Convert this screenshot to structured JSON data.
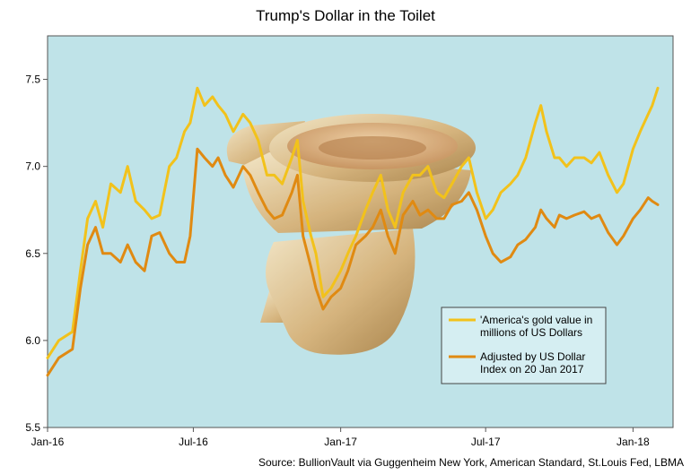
{
  "chart_data": {
    "type": "line",
    "title": "Trump's Dollar in the Toilet",
    "source": "Source: BullionVault via Guggenheim New York, American Standard, St.Louis Fed, LBMA",
    "xlabel": "",
    "ylabel": "",
    "ylim": [
      5.5,
      7.75
    ],
    "yticks": [
      "5.5",
      "6.0",
      "6.5",
      "7.0",
      "7.5"
    ],
    "xlim": [
      "2016-01-01",
      "2018-02-20"
    ],
    "xticks": [
      {
        "label": "Jan-16",
        "date": "2016-01-01"
      },
      {
        "label": "Jul-16",
        "date": "2016-07-01"
      },
      {
        "label": "Jan-17",
        "date": "2017-01-01"
      },
      {
        "label": "Jul-17",
        "date": "2017-07-01"
      },
      {
        "label": "Jan-18",
        "date": "2018-01-01"
      }
    ],
    "grid": false,
    "legend_position": "lower-right",
    "background_color": "#bfe3e8",
    "series": [
      {
        "name": "'America's gold value in millions of US Dollars",
        "color": "#f2c21b",
        "x": [
          "2016-01-01",
          "2016-01-15",
          "2016-02-01",
          "2016-02-11",
          "2016-02-20",
          "2016-03-01",
          "2016-03-10",
          "2016-03-20",
          "2016-04-01",
          "2016-04-10",
          "2016-04-20",
          "2016-05-01",
          "2016-05-10",
          "2016-05-20",
          "2016-06-01",
          "2016-06-10",
          "2016-06-20",
          "2016-06-27",
          "2016-07-06",
          "2016-07-15",
          "2016-07-25",
          "2016-08-01",
          "2016-08-10",
          "2016-08-20",
          "2016-09-01",
          "2016-09-10",
          "2016-09-20",
          "2016-10-01",
          "2016-10-10",
          "2016-10-20",
          "2016-11-01",
          "2016-11-08",
          "2016-11-15",
          "2016-11-25",
          "2016-12-01",
          "2016-12-10",
          "2016-12-20",
          "2017-01-01",
          "2017-01-10",
          "2017-01-20",
          "2017-02-01",
          "2017-02-10",
          "2017-02-20",
          "2017-03-01",
          "2017-03-10",
          "2017-03-20",
          "2017-04-01",
          "2017-04-10",
          "2017-04-20",
          "2017-05-01",
          "2017-05-10",
          "2017-05-20",
          "2017-06-01",
          "2017-06-10",
          "2017-06-20",
          "2017-07-01",
          "2017-07-10",
          "2017-07-20",
          "2017-08-01",
          "2017-08-10",
          "2017-08-20",
          "2017-09-01",
          "2017-09-08",
          "2017-09-15",
          "2017-09-25",
          "2017-10-01",
          "2017-10-10",
          "2017-10-20",
          "2017-11-01",
          "2017-11-10",
          "2017-11-20",
          "2017-12-01",
          "2017-12-12",
          "2017-12-20",
          "2018-01-01",
          "2018-01-10",
          "2018-01-20",
          "2018-01-25",
          "2018-02-01"
        ],
        "values": [
          5.9,
          6.0,
          6.05,
          6.4,
          6.7,
          6.8,
          6.65,
          6.9,
          6.85,
          7.0,
          6.8,
          6.75,
          6.7,
          6.72,
          7.0,
          7.05,
          7.2,
          7.25,
          7.45,
          7.35,
          7.4,
          7.35,
          7.3,
          7.2,
          7.3,
          7.25,
          7.15,
          6.95,
          6.95,
          6.9,
          7.05,
          7.15,
          6.8,
          6.6,
          6.5,
          6.25,
          6.3,
          6.4,
          6.5,
          6.6,
          6.75,
          6.85,
          6.95,
          6.75,
          6.65,
          6.85,
          6.95,
          6.95,
          7.0,
          6.85,
          6.82,
          6.9,
          7.0,
          7.05,
          6.85,
          6.7,
          6.75,
          6.85,
          6.9,
          6.95,
          7.05,
          7.25,
          7.35,
          7.2,
          7.05,
          7.05,
          7.0,
          7.05,
          7.05,
          7.02,
          7.08,
          6.95,
          6.85,
          6.9,
          7.1,
          7.2,
          7.3,
          7.35,
          7.45
        ]
      },
      {
        "name": "Adjusted by US Dollar Index on 20 Jan 2017",
        "color": "#e08a12",
        "x": [
          "2016-01-01",
          "2016-01-15",
          "2016-02-01",
          "2016-02-11",
          "2016-02-20",
          "2016-03-01",
          "2016-03-10",
          "2016-03-20",
          "2016-04-01",
          "2016-04-10",
          "2016-04-20",
          "2016-05-01",
          "2016-05-10",
          "2016-05-20",
          "2016-06-01",
          "2016-06-10",
          "2016-06-20",
          "2016-06-27",
          "2016-07-06",
          "2016-07-15",
          "2016-07-25",
          "2016-08-01",
          "2016-08-10",
          "2016-08-20",
          "2016-09-01",
          "2016-09-10",
          "2016-09-20",
          "2016-10-01",
          "2016-10-10",
          "2016-10-20",
          "2016-11-01",
          "2016-11-08",
          "2016-11-15",
          "2016-11-25",
          "2016-12-01",
          "2016-12-10",
          "2016-12-20",
          "2017-01-01",
          "2017-01-10",
          "2017-01-20",
          "2017-02-01",
          "2017-02-10",
          "2017-02-20",
          "2017-03-01",
          "2017-03-10",
          "2017-03-20",
          "2017-04-01",
          "2017-04-10",
          "2017-04-20",
          "2017-05-01",
          "2017-05-10",
          "2017-05-20",
          "2017-06-01",
          "2017-06-10",
          "2017-06-20",
          "2017-07-01",
          "2017-07-10",
          "2017-07-20",
          "2017-08-01",
          "2017-08-10",
          "2017-08-20",
          "2017-09-01",
          "2017-09-08",
          "2017-09-15",
          "2017-09-25",
          "2017-10-01",
          "2017-10-10",
          "2017-10-20",
          "2017-11-01",
          "2017-11-10",
          "2017-11-20",
          "2017-12-01",
          "2017-12-12",
          "2017-12-20",
          "2018-01-01",
          "2018-01-10",
          "2018-01-20",
          "2018-01-25",
          "2018-02-01"
        ],
        "values": [
          5.8,
          5.9,
          5.95,
          6.3,
          6.55,
          6.65,
          6.5,
          6.5,
          6.45,
          6.55,
          6.45,
          6.4,
          6.6,
          6.62,
          6.5,
          6.45,
          6.45,
          6.6,
          7.1,
          7.05,
          7.0,
          7.05,
          6.95,
          6.88,
          7.0,
          6.95,
          6.85,
          6.75,
          6.7,
          6.72,
          6.85,
          6.95,
          6.6,
          6.42,
          6.3,
          6.18,
          6.25,
          6.3,
          6.4,
          6.55,
          6.6,
          6.65,
          6.75,
          6.6,
          6.5,
          6.72,
          6.8,
          6.72,
          6.75,
          6.7,
          6.7,
          6.78,
          6.8,
          6.85,
          6.75,
          6.6,
          6.5,
          6.45,
          6.48,
          6.55,
          6.58,
          6.65,
          6.75,
          6.7,
          6.65,
          6.72,
          6.7,
          6.72,
          6.74,
          6.7,
          6.72,
          6.62,
          6.55,
          6.6,
          6.7,
          6.75,
          6.82,
          6.8,
          6.78
        ]
      }
    ]
  }
}
